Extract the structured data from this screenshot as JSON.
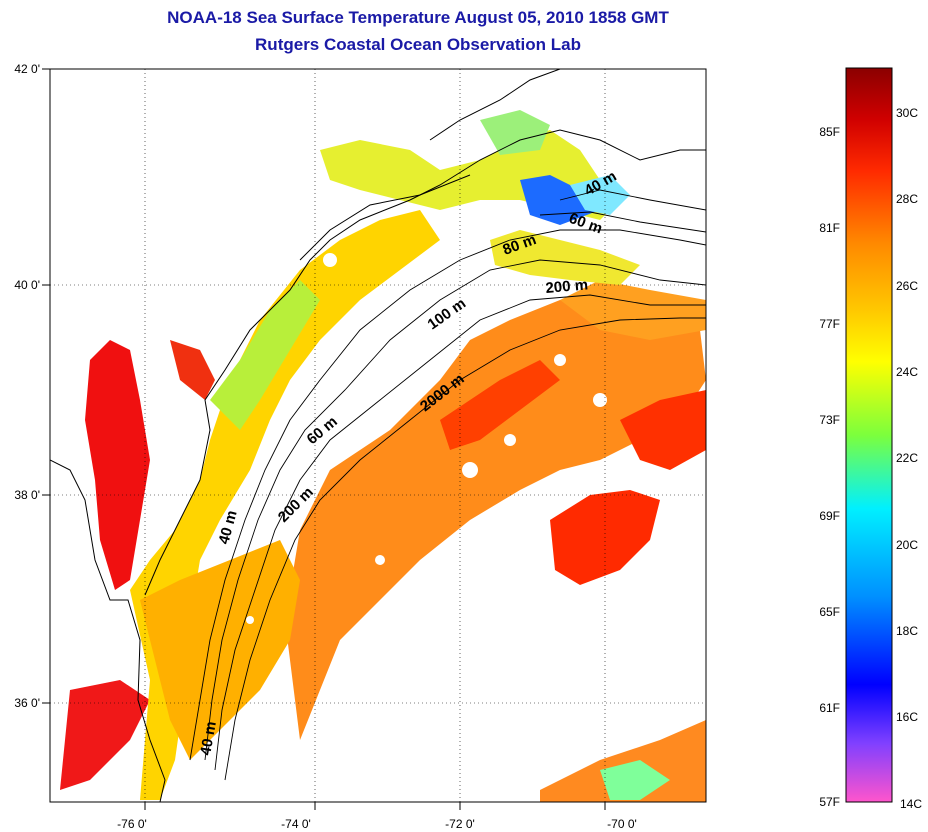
{
  "header": {
    "title_line1": "NOAA-18 Sea Surface Temperature August 05, 2010 1858 GMT",
    "title_line2": "Rutgers Coastal Ocean Observation Lab"
  },
  "axes": {
    "lat_labels": [
      "42 0'",
      "40 0'",
      "38 0'",
      "36 0'"
    ],
    "lon_labels": [
      "-76 0'",
      "-74 0'",
      "-72 0'",
      "-70 0'"
    ]
  },
  "contours": {
    "labels": [
      "40 m",
      "60 m",
      "80 m",
      "200 m",
      "100 m",
      "2000 m",
      "60 m",
      "200 m",
      "40 m",
      "40 m"
    ]
  },
  "colorbar": {
    "fahrenheit": [
      "85F",
      "81F",
      "77F",
      "73F",
      "69F",
      "65F",
      "61F",
      "57F"
    ],
    "celsius": [
      "30C",
      "28C",
      "26C",
      "24C",
      "22C",
      "20C",
      "18C",
      "16C",
      "14C"
    ],
    "colors": [
      "#8b0000",
      "#ff0000",
      "#ff8c00",
      "#ffff00",
      "#7fff00",
      "#00ffff",
      "#0000ff",
      "#ff66cc"
    ]
  },
  "layers": {
    "land_color": "#ffffff",
    "coastline_color": "#000000",
    "cloud_mask_color": "#ffffff"
  }
}
